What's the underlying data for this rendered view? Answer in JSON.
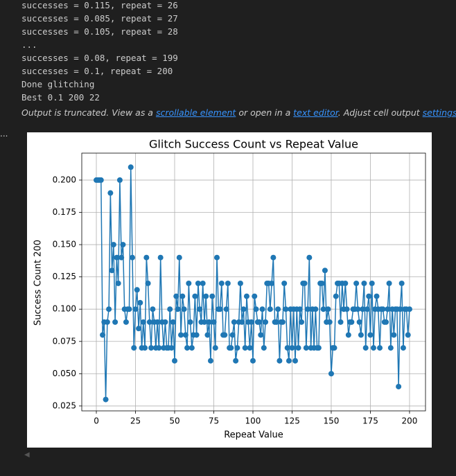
{
  "output_lines": [
    "successes = 0.115, repeat = 26",
    "successes = 0.085, repeat = 27",
    "successes = 0.105, repeat = 28",
    "...",
    "successes = 0.08, repeat = 199",
    "successes = 0.1, repeat = 200",
    "Done glitching",
    "Best 0.1 200 22"
  ],
  "truncation_message": [
    "Output is truncated. View as a ",
    "scrollable element",
    " or open in a ",
    "text editor",
    ". Adjust cell output ",
    "settings",
    "..."
  ],
  "side_marker": "...",
  "chart_data": {
    "type": "line",
    "title": "Glitch Success Count vs Repeat Value",
    "x_label": "Repeat Value",
    "y_label": "Success Count 200",
    "color": "#1f77b4",
    "markers": true,
    "grid": true,
    "x": [
      0,
      1,
      2,
      3,
      4,
      5,
      6,
      7,
      8,
      9,
      10,
      11,
      12,
      13,
      14,
      15,
      16,
      17,
      18,
      19,
      20,
      21,
      22,
      23,
      24,
      25,
      26,
      27,
      28,
      29,
      30,
      31,
      32,
      33,
      34,
      35,
      36,
      37,
      38,
      39,
      40,
      41,
      42,
      43,
      44,
      45,
      46,
      47,
      48,
      49,
      50,
      51,
      52,
      53,
      54,
      55,
      56,
      57,
      58,
      59,
      60,
      61,
      62,
      63,
      64,
      65,
      66,
      67,
      68,
      69,
      70,
      71,
      72,
      73,
      74,
      75,
      76,
      77,
      78,
      79,
      80,
      81,
      82,
      83,
      84,
      85,
      86,
      87,
      88,
      89,
      90,
      91,
      92,
      93,
      94,
      95,
      96,
      97,
      98,
      99,
      100,
      101,
      102,
      103,
      104,
      105,
      106,
      107,
      108,
      109,
      110,
      111,
      112,
      113,
      114,
      115,
      116,
      117,
      118,
      119,
      120,
      121,
      122,
      123,
      124,
      125,
      126,
      127,
      128,
      129,
      130,
      131,
      132,
      133,
      134,
      135,
      136,
      137,
      138,
      139,
      140,
      141,
      142,
      143,
      144,
      145,
      146,
      147,
      148,
      149,
      150,
      151,
      152,
      153,
      154,
      155,
      156,
      157,
      158,
      159,
      160,
      161,
      162,
      163,
      164,
      165,
      166,
      167,
      168,
      169,
      170,
      171,
      172,
      173,
      174,
      175,
      176,
      177,
      178,
      179,
      180,
      181,
      182,
      183,
      184,
      185,
      186,
      187,
      188,
      189,
      190,
      191,
      192,
      193,
      194,
      195,
      196,
      197,
      198,
      199,
      200
    ],
    "values": [
      0.2,
      0.2,
      0.2,
      0.2,
      0.08,
      0.09,
      0.03,
      0.09,
      0.1,
      0.19,
      0.13,
      0.15,
      0.09,
      0.14,
      0.12,
      0.2,
      0.14,
      0.15,
      0.1,
      0.09,
      0.1,
      0.1,
      0.21,
      0.14,
      0.07,
      0.1,
      0.115,
      0.085,
      0.105,
      0.07,
      0.09,
      0.07,
      0.14,
      0.12,
      0.09,
      0.07,
      0.1,
      0.09,
      0.07,
      0.09,
      0.07,
      0.14,
      0.09,
      0.07,
      0.09,
      0.07,
      0.07,
      0.1,
      0.07,
      0.09,
      0.06,
      0.11,
      0.1,
      0.14,
      0.08,
      0.11,
      0.1,
      0.08,
      0.07,
      0.12,
      0.09,
      0.07,
      0.08,
      0.11,
      0.08,
      0.12,
      0.1,
      0.09,
      0.12,
      0.09,
      0.11,
      0.08,
      0.09,
      0.06,
      0.11,
      0.09,
      0.07,
      0.14,
      0.1,
      0.1,
      0.12,
      0.08,
      0.08,
      0.1,
      0.12,
      0.07,
      0.07,
      0.08,
      0.09,
      0.06,
      0.07,
      0.09,
      0.12,
      0.09,
      0.1,
      0.07,
      0.11,
      0.09,
      0.07,
      0.09,
      0.06,
      0.11,
      0.1,
      0.09,
      0.09,
      0.08,
      0.1,
      0.07,
      0.09,
      0.12,
      0.12,
      0.1,
      0.12,
      0.14,
      0.09,
      0.09,
      0.1,
      0.06,
      0.09,
      0.09,
      0.12,
      0.1,
      0.07,
      0.06,
      0.1,
      0.07,
      0.1,
      0.06,
      0.1,
      0.07,
      0.1,
      0.09,
      0.12,
      0.12,
      0.07,
      0.1,
      0.14,
      0.07,
      0.1,
      0.07,
      0.1,
      0.07,
      0.07,
      0.12,
      0.12,
      0.1,
      0.13,
      0.09,
      0.1,
      0.09,
      0.05,
      0.07,
      0.07,
      0.11,
      0.12,
      0.12,
      0.09,
      0.12,
      0.1,
      0.12,
      0.1,
      0.08,
      0.09,
      0.09,
      0.1,
      0.1,
      0.12,
      0.1,
      0.09,
      0.08,
      0.1,
      0.12,
      0.07,
      0.1,
      0.11,
      0.08,
      0.12,
      0.07,
      0.1,
      0.11,
      0.1,
      0.07,
      0.1,
      0.1,
      0.09,
      0.09,
      0.1,
      0.12,
      0.07,
      0.1,
      0.08,
      0.1,
      0.1,
      0.04,
      0.1,
      0.12,
      0.07,
      0.1,
      0.1,
      0.08,
      0.1
    ],
    "xlim": [
      -9.3,
      210.2
    ],
    "xticks": [
      0,
      25,
      50,
      75,
      100,
      125,
      150,
      175,
      200
    ],
    "ylim": [
      0.0212,
      0.2209
    ],
    "yticks": [
      0.025,
      {
        "value": 0.05,
        "label": "0.050"
      },
      0.075,
      {
        "value": 0.1,
        "label": "0.100"
      },
      0.125,
      {
        "value": 0.15,
        "label": "0.150"
      },
      0.175,
      {
        "value": 0.2,
        "label": "0.200"
      }
    ]
  }
}
